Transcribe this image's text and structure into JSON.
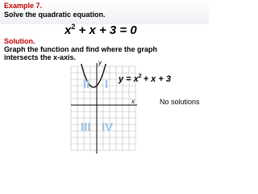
{
  "header": {
    "label": "Example 7.",
    "instruction": "Solve the quadratic equation."
  },
  "equation": {
    "base": "x",
    "exponent": "2",
    "rest": "+ x + 3 = 0"
  },
  "solution": {
    "label": "Solution.",
    "text_line1": "Graph the function and find where the graph",
    "text_line2": "intersects the x-axis."
  },
  "graph": {
    "x_axis_label": "x",
    "y_axis_label": "y",
    "quadrants": [
      "I",
      "II",
      "III",
      "IV"
    ],
    "function_label": {
      "lhs": "y = x",
      "exponent": "2",
      "rest": "+ x + 3"
    }
  },
  "result": "No solutions"
}
